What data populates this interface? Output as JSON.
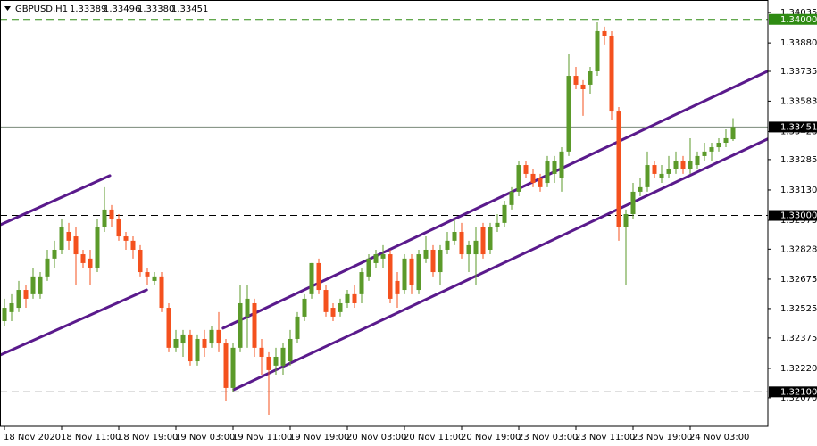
{
  "chart_data": {
    "type": "candlestick",
    "header": {
      "symbol": "GBPUSD,H1",
      "ohlc": [
        "1.33389",
        "1.33496",
        "1.33380",
        "1.33451"
      ]
    },
    "categories": [
      "18 Nov 2020",
      null,
      null,
      null,
      null,
      null,
      null,
      null,
      "18 Nov 11:00",
      null,
      null,
      null,
      null,
      null,
      null,
      null,
      "18 Nov 19:00",
      null,
      null,
      null,
      null,
      null,
      null,
      null,
      "19 Nov 03:00",
      null,
      null,
      null,
      null,
      null,
      null,
      null,
      "19 Nov 11:00",
      null,
      null,
      null,
      null,
      null,
      null,
      null,
      "19 Nov 19:00",
      null,
      null,
      null,
      null,
      null,
      null,
      null,
      "20 Nov 03:00",
      null,
      null,
      null,
      null,
      null,
      null,
      null,
      "20 Nov 11:00",
      null,
      null,
      null,
      null,
      null,
      null,
      null,
      "20 Nov 19:00",
      null,
      null,
      null,
      null,
      null,
      null,
      null,
      "23 Nov 03:00",
      null,
      null,
      null,
      null,
      null,
      null,
      null,
      "23 Nov 11:00",
      null,
      null,
      null,
      null,
      null,
      null,
      null,
      "23 Nov 19:00",
      null,
      null,
      null,
      null,
      null,
      null,
      null,
      "24 Nov 03:00",
      null,
      null,
      null,
      null,
      null,
      null
    ],
    "open": [
      1.32461,
      1.32507,
      1.32529,
      1.3262,
      1.32598,
      1.32598,
      1.32689,
      1.3278,
      1.32825,
      1.32916,
      1.32893,
      1.32802,
      1.3278,
      1.32734,
      1.32939,
      1.3303,
      1.32984,
      1.32893,
      1.32871,
      1.32825,
      1.32711,
      1.32666,
      1.32689,
      1.32529,
      1.32325,
      1.32347,
      1.32393,
      1.32256,
      1.3237,
      1.32347,
      1.32416,
      1.32347,
      1.3212,
      1.32325,
      1.32484,
      1.32552,
      1.32325,
      1.32279,
      1.32234,
      1.32234,
      1.32256,
      1.3237,
      1.32484,
      1.32598,
      1.32757,
      1.3262,
      1.32529,
      1.32507,
      1.32552,
      1.32598,
      1.32598,
      1.32689,
      1.32757,
      1.3278,
      1.32802,
      1.32666,
      1.3262,
      1.3278,
      1.3262,
      1.3278,
      1.32825,
      1.32711,
      1.32825,
      1.32871,
      1.32916,
      1.32802,
      1.32802,
      1.32939,
      1.32825,
      1.32939,
      1.32962,
      1.33053,
      1.33121,
      1.33257,
      1.33212,
      1.33189,
      1.33166,
      1.33212,
      1.33189,
      1.33326,
      1.33712,
      1.33667,
      1.33667,
      1.33735,
      1.3394,
      1.33917,
      1.3353,
      1.32939,
      1.33007,
      1.33121,
      1.33144,
      1.33257,
      1.33189,
      1.33212,
      1.33235,
      1.3328,
      1.33235,
      1.33257,
      1.33303,
      1.33326,
      1.33348,
      1.33371,
      1.33389
    ],
    "high": [
      1.32575,
      1.32598,
      1.32666,
      1.32643,
      1.32734,
      1.32711,
      1.32825,
      1.32871,
      1.32984,
      1.32962,
      1.32939,
      1.32825,
      1.32825,
      1.32984,
      1.33144,
      1.33053,
      1.33007,
      1.32916,
      1.32893,
      1.32848,
      1.32734,
      1.32711,
      1.32711,
      1.32552,
      1.32416,
      1.32416,
      1.32416,
      1.32393,
      1.32416,
      1.32438,
      1.32507,
      1.3237,
      1.32347,
      1.32643,
      1.32643,
      1.32575,
      1.3237,
      1.32302,
      1.32325,
      1.32347,
      1.32416,
      1.32507,
      1.32598,
      1.32757,
      1.3278,
      1.32643,
      1.32552,
      1.32575,
      1.3262,
      1.32643,
      1.32734,
      1.32802,
      1.32825,
      1.32848,
      1.32825,
      1.32711,
      1.32802,
      1.32802,
      1.32825,
      1.32893,
      1.32848,
      1.32848,
      1.32916,
      1.32984,
      1.32962,
      1.32871,
      1.32939,
      1.32962,
      1.32962,
      1.33007,
      1.33075,
      1.33144,
      1.3328,
      1.3328,
      1.33235,
      1.33212,
      1.33303,
      1.33303,
      1.33348,
      1.33826,
      1.33758,
      1.3369,
      1.33758,
      1.33985,
      1.33963,
      1.3394,
      1.33553,
      1.3303,
      1.33166,
      1.33189,
      1.33326,
      1.3328,
      1.33257,
      1.33303,
      1.33326,
      1.33303,
      1.33394,
      1.33326,
      1.33371,
      1.33371,
      1.33394,
      1.33439,
      1.33496
    ],
    "low": [
      1.32438,
      1.32461,
      1.32507,
      1.32529,
      1.32575,
      1.32575,
      1.32666,
      1.32734,
      1.32802,
      1.32825,
      1.32643,
      1.32734,
      1.32643,
      1.32711,
      1.32916,
      1.32939,
      1.32871,
      1.32825,
      1.3278,
      1.32689,
      1.32643,
      1.32643,
      1.32507,
      1.32302,
      1.32302,
      1.32279,
      1.32234,
      1.32234,
      1.32279,
      1.32325,
      1.32302,
      1.32052,
      1.32097,
      1.32302,
      1.32325,
      1.32279,
      1.32188,
      1.31983,
      1.32188,
      1.32188,
      1.32234,
      1.32347,
      1.32461,
      1.32575,
      1.32598,
      1.32484,
      1.32461,
      1.32484,
      1.32529,
      1.32529,
      1.32552,
      1.32666,
      1.32734,
      1.32734,
      1.32552,
      1.32529,
      1.32598,
      1.32598,
      1.32598,
      1.32757,
      1.32689,
      1.32643,
      1.32802,
      1.32848,
      1.3278,
      1.32711,
      1.32643,
      1.3278,
      1.32802,
      1.32916,
      1.32939,
      1.3303,
      1.33098,
      1.33189,
      1.33144,
      1.33121,
      1.33144,
      1.33166,
      1.33121,
      1.33303,
      1.33644,
      1.33508,
      1.33621,
      1.33712,
      1.33872,
      1.33485,
      1.32871,
      1.32643,
      1.32984,
      1.33098,
      1.33121,
      1.33189,
      1.33166,
      1.33189,
      1.33212,
      1.33212,
      1.33212,
      1.33235,
      1.3328,
      1.3328,
      1.33326,
      1.33348,
      1.3338
    ],
    "close": [
      1.32529,
      1.32552,
      1.3262,
      1.32575,
      1.32689,
      1.32689,
      1.3278,
      1.32825,
      1.32939,
      1.32871,
      1.32802,
      1.32757,
      1.32734,
      1.32939,
      1.3303,
      1.32984,
      1.32893,
      1.32871,
      1.32825,
      1.32711,
      1.32689,
      1.32689,
      1.32529,
      1.32325,
      1.3237,
      1.32393,
      1.32256,
      1.3237,
      1.32325,
      1.32416,
      1.32347,
      1.3212,
      1.32325,
      1.32552,
      1.32575,
      1.32325,
      1.32279,
      1.32211,
      1.32279,
      1.32325,
      1.3237,
      1.32484,
      1.32575,
      1.32757,
      1.3262,
      1.32507,
      1.32484,
      1.32552,
      1.32598,
      1.32552,
      1.32711,
      1.3278,
      1.32802,
      1.32802,
      1.32575,
      1.32598,
      1.3278,
      1.32643,
      1.32802,
      1.32825,
      1.32711,
      1.32825,
      1.32871,
      1.32916,
      1.32802,
      1.32848,
      1.32871,
      1.32802,
      1.32939,
      1.32962,
      1.33053,
      1.33121,
      1.33257,
      1.33212,
      1.33166,
      1.33144,
      1.3328,
      1.3328,
      1.33326,
      1.33712,
      1.33667,
      1.33644,
      1.33735,
      1.3394,
      1.33917,
      1.3353,
      1.32939,
      1.33007,
      1.33121,
      1.33144,
      1.33257,
      1.33212,
      1.33212,
      1.33235,
      1.3328,
      1.33235,
      1.3328,
      1.33303,
      1.33326,
      1.33348,
      1.33371,
      1.33394,
      1.33451
    ],
    "up_color": "#5b9a2a",
    "down_color": "#f4511e",
    "ylim": [
      1.31924,
      1.34099
    ],
    "yticks": [
      1.34035,
      {
        "value": 1.3388,
        "label": "1.33880"
      },
      1.33735,
      1.33583,
      1.33428,
      1.33285,
      {
        "value": 1.3313,
        "label": "1.33130"
      },
      1.32975,
      1.32828,
      1.32675,
      1.32525,
      1.32375,
      {
        "value": 1.3222,
        "label": "1.32220"
      },
      {
        "value": 1.3207,
        "label": "1.32070"
      }
    ],
    "levels": [
      {
        "value": 1.34,
        "label": "1.34000",
        "style": "dashed",
        "color": "#2e8b12"
      },
      {
        "value": 1.33451,
        "label": "1.33451",
        "style": "solid",
        "color": "#000000"
      },
      {
        "value": 1.33,
        "label": "1.33000",
        "style": "dashed",
        "color": "#000000"
      },
      {
        "value": 1.321,
        "label": "1.32100",
        "style": "dashed",
        "color": "#000000"
      }
    ],
    "trendline_color": "#5a1a8c",
    "trendlines": [
      {
        "x": [
          -0.6,
          14.75
        ],
        "y": [
          1.32952,
          1.33203
        ]
      },
      {
        "x": [
          -0.6,
          19.9
        ],
        "y": [
          1.32288,
          1.3262
        ]
      },
      {
        "x": [
          30.6,
          107.6
        ],
        "y": [
          1.32425,
          1.33749
        ]
      },
      {
        "x": [
          32.1,
          107.6
        ],
        "y": [
          1.32111,
          1.33403
        ]
      }
    ]
  }
}
